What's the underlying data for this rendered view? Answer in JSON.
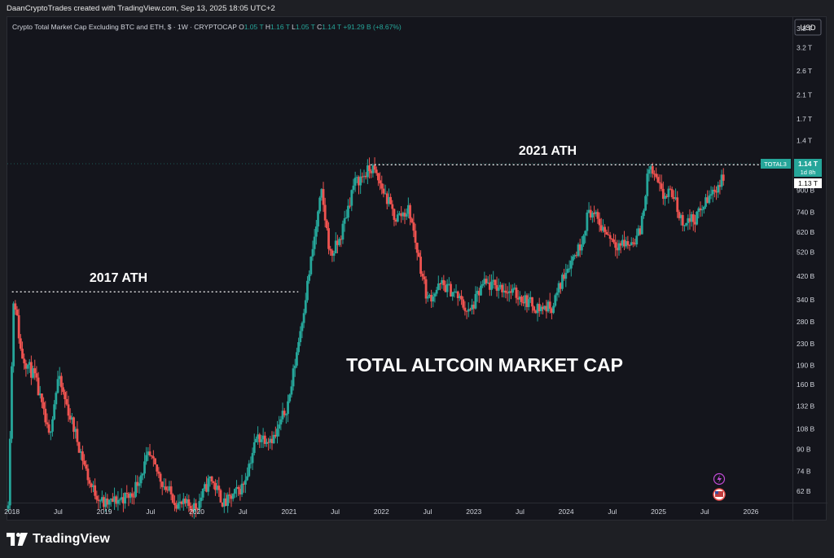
{
  "caption": "DaanCryptoTrades created with TradingView.com, Sep 13, 2025 18:05 UTC+2",
  "footer": {
    "brand": "TradingView",
    "logo_icon": "tradingview-logo-icon"
  },
  "colors": {
    "background": "#14151c",
    "up": "#26a69a",
    "down": "#ef5350",
    "text": "#d1d4dc",
    "price_badge": "#26a69a"
  },
  "chart_data": {
    "type": "candlestick",
    "symbol_line": {
      "title": "Crypto Total Market Cap Excluding BTC and ETH, $ · 1W · CRYPTOCAP",
      "o_label": "O",
      "o_value": "1.05 T",
      "h_label": "H",
      "h_value": "1.16 T",
      "l_label": "L",
      "l_value": "1.05 T",
      "c_label": "C",
      "c_value": "1.14 T",
      "change": "+91.29 B (+8.67%)"
    },
    "currency": "USD",
    "y_scale": "log",
    "ylim": [
      56000000000.0,
      4200000000000.0
    ],
    "xlim": [
      2017.95,
      2026.45
    ],
    "y_ticks": [
      {
        "label": "3.8 T",
        "value": 3800000000000.0
      },
      {
        "label": "3.2 T",
        "value": 3200000000000.0
      },
      {
        "label": "2.6 T",
        "value": 2600000000000.0
      },
      {
        "label": "2.1 T",
        "value": 2100000000000.0
      },
      {
        "label": "1.7 T",
        "value": 1700000000000.0
      },
      {
        "label": "1.4 T",
        "value": 1400000000000.0
      },
      {
        "label": "900 B",
        "value": 900000000000.0
      },
      {
        "label": "740 B",
        "value": 740000000000.0
      },
      {
        "label": "620 B",
        "value": 620000000000.0
      },
      {
        "label": "520 B",
        "value": 520000000000.0
      },
      {
        "label": "420 B",
        "value": 420000000000.0
      },
      {
        "label": "340 B",
        "value": 340000000000.0
      },
      {
        "label": "280 B",
        "value": 280000000000.0
      },
      {
        "label": "230 B",
        "value": 230000000000.0
      },
      {
        "label": "190 B",
        "value": 190000000000.0
      },
      {
        "label": "160 B",
        "value": 160000000000.0
      },
      {
        "label": "132 B",
        "value": 132000000000.0
      },
      {
        "label": "108 B",
        "value": 108000000000.0
      },
      {
        "label": "90 B",
        "value": 90000000000.0
      },
      {
        "label": "74 B",
        "value": 74000000000.0
      },
      {
        "label": "62 B",
        "value": 62000000000.0
      }
    ],
    "x_ticks": [
      {
        "label": "2018",
        "value": 2018.0
      },
      {
        "label": "Jul",
        "value": 2018.5
      },
      {
        "label": "2019",
        "value": 2019.0
      },
      {
        "label": "Jul",
        "value": 2019.5
      },
      {
        "label": "2020",
        "value": 2020.0
      },
      {
        "label": "Jul",
        "value": 2020.5
      },
      {
        "label": "2021",
        "value": 2021.0
      },
      {
        "label": "Jul",
        "value": 2021.5
      },
      {
        "label": "2022",
        "value": 2022.0
      },
      {
        "label": "Jul",
        "value": 2022.5
      },
      {
        "label": "2023",
        "value": 2023.0
      },
      {
        "label": "Jul",
        "value": 2023.5
      },
      {
        "label": "2024",
        "value": 2024.0
      },
      {
        "label": "Jul",
        "value": 2024.5
      },
      {
        "label": "2025",
        "value": 2025.0
      },
      {
        "label": "Jul",
        "value": 2025.5
      },
      {
        "label": "2026",
        "value": 2026.0
      }
    ],
    "price_markers": [
      {
        "name": "TOTAL3",
        "value_label": "1.14 T",
        "countdown": "1d 8h",
        "value": 1140000000000.0
      },
      {
        "value_label": "1.13 T",
        "value": 1130000000000.0
      }
    ],
    "ath_levels": [
      {
        "label": "2017 ATH",
        "value": 365000000000.0,
        "x_start": 2018.0,
        "x_end": 2021.1
      },
      {
        "label": "2021 ATH",
        "value": 1130000000000.0,
        "x_start": 2021.88,
        "x_end": 2026.1
      }
    ],
    "annotation": "TOTAL ALTCOIN MARKET CAP",
    "anchors": [
      [
        2017.96,
        58000000000.0
      ],
      [
        2018.02,
        365000000000.0
      ],
      [
        2018.1,
        210000000000.0
      ],
      [
        2018.25,
        170000000000.0
      ],
      [
        2018.4,
        100000000000.0
      ],
      [
        2018.5,
        170000000000.0
      ],
      [
        2018.7,
        100000000000.0
      ],
      [
        2018.85,
        65000000000.0
      ],
      [
        2019.0,
        55000000000.0
      ],
      [
        2019.3,
        60000000000.0
      ],
      [
        2019.48,
        85000000000.0
      ],
      [
        2019.65,
        65000000000.0
      ],
      [
        2019.8,
        55000000000.0
      ],
      [
        2020.0,
        54000000000.0
      ],
      [
        2020.15,
        70000000000.0
      ],
      [
        2020.3,
        55000000000.0
      ],
      [
        2020.5,
        65000000000.0
      ],
      [
        2020.65,
        100000000000.0
      ],
      [
        2020.85,
        100000000000.0
      ],
      [
        2021.0,
        140000000000.0
      ],
      [
        2021.15,
        300000000000.0
      ],
      [
        2021.35,
        880000000000.0
      ],
      [
        2021.45,
        500000000000.0
      ],
      [
        2021.55,
        580000000000.0
      ],
      [
        2021.7,
        950000000000.0
      ],
      [
        2021.9,
        1100000000000.0
      ],
      [
        2022.05,
        850000000000.0
      ],
      [
        2022.15,
        700000000000.0
      ],
      [
        2022.3,
        760000000000.0
      ],
      [
        2022.4,
        500000000000.0
      ],
      [
        2022.5,
        340000000000.0
      ],
      [
        2022.65,
        390000000000.0
      ],
      [
        2022.8,
        360000000000.0
      ],
      [
        2022.95,
        300000000000.0
      ],
      [
        2023.1,
        390000000000.0
      ],
      [
        2023.3,
        380000000000.0
      ],
      [
        2023.5,
        350000000000.0
      ],
      [
        2023.7,
        315000000000.0
      ],
      [
        2023.85,
        320000000000.0
      ],
      [
        2024.0,
        450000000000.0
      ],
      [
        2024.15,
        550000000000.0
      ],
      [
        2024.25,
        760000000000.0
      ],
      [
        2024.4,
        640000000000.0
      ],
      [
        2024.55,
        560000000000.0
      ],
      [
        2024.7,
        560000000000.0
      ],
      [
        2024.8,
        620000000000.0
      ],
      [
        2024.9,
        1120000000000.0
      ],
      [
        2025.05,
        850000000000.0
      ],
      [
        2025.15,
        880000000000.0
      ],
      [
        2025.25,
        680000000000.0
      ],
      [
        2025.4,
        700000000000.0
      ],
      [
        2025.55,
        850000000000.0
      ],
      [
        2025.7,
        1000000000000.0
      ],
      [
        2025.72,
        1140000000000.0
      ]
    ]
  }
}
